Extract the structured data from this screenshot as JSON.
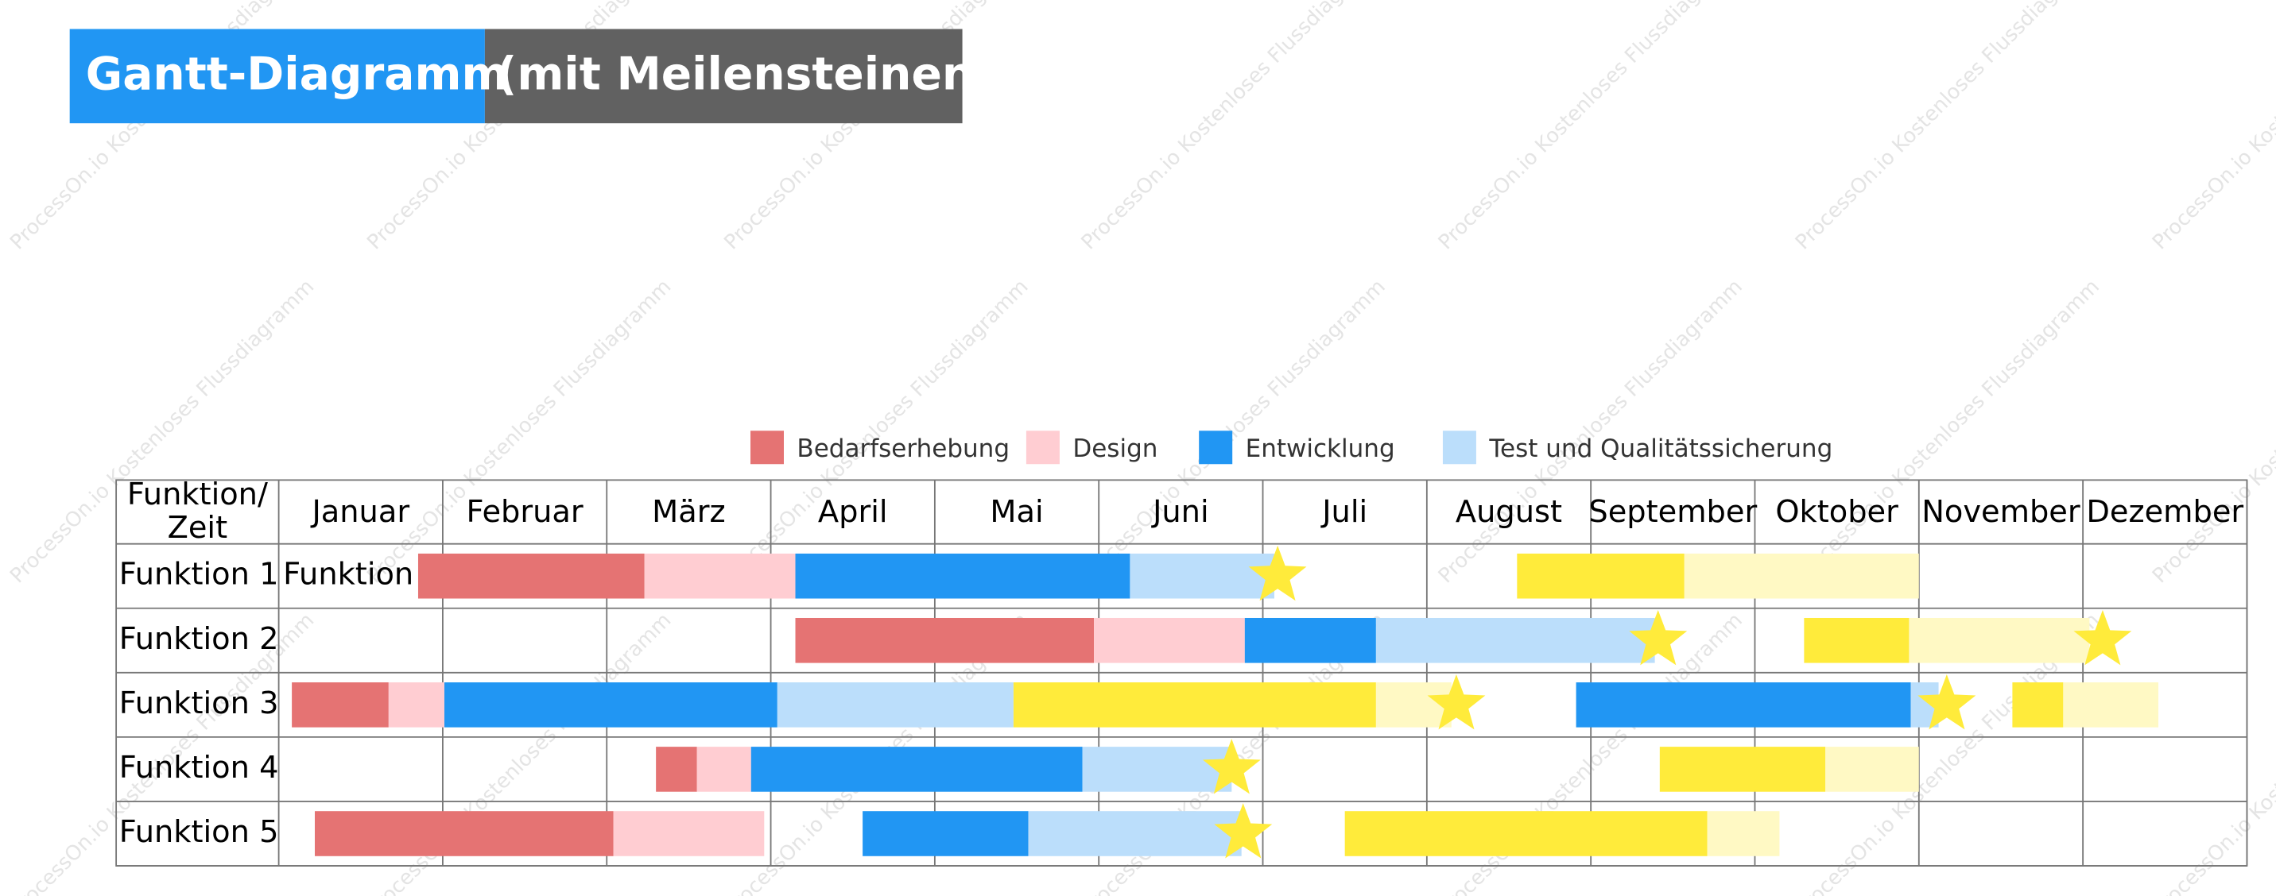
{
  "title": {
    "main": "Gantt-Diagramm",
    "sub": "(mit Meilensteinen)"
  },
  "watermark": "ProcessOn.io Kostenloses Flussdiagramm",
  "legend": [
    {
      "label": "Bedarfserhebung",
      "color": "#e57373"
    },
    {
      "label": "Design",
      "color": "#ffcdd2"
    },
    {
      "label": "Entwicklung",
      "color": "#2196f3"
    },
    {
      "label": "Test und Qualitätssicherung",
      "color": "#bbdefb"
    }
  ],
  "milestone_color": "#ffeb3b",
  "table": {
    "corner": [
      "Funktion/",
      "Zeit"
    ],
    "months": [
      "Januar",
      "Februar",
      "März",
      "April",
      "Mai",
      "Juni",
      "Juli",
      "August",
      "September",
      "Oktober",
      "November",
      "Dezember"
    ],
    "rows": [
      {
        "label": "Funktion 1",
        "note": "Funktion",
        "bars": [
          {
            "start": 0.85,
            "end": 2.23,
            "color": "#e57373"
          },
          {
            "start": 2.23,
            "end": 3.15,
            "color": "#ffcdd2"
          },
          {
            "start": 3.15,
            "end": 5.19,
            "color": "#2196f3"
          },
          {
            "start": 5.19,
            "end": 6.07,
            "color": "#bbdefb"
          },
          {
            "start": 7.55,
            "end": 8.57,
            "color": "#ffeb3b"
          },
          {
            "start": 8.57,
            "end": 10.0,
            "color": "#fff9c4"
          }
        ],
        "milestones": [
          6.09
        ]
      },
      {
        "label": "Funktion 2",
        "bars": [
          {
            "start": 3.15,
            "end": 4.97,
            "color": "#e57373"
          },
          {
            "start": 4.97,
            "end": 5.89,
            "color": "#ffcdd2"
          },
          {
            "start": 5.89,
            "end": 6.69,
            "color": "#2196f3"
          },
          {
            "start": 6.69,
            "end": 8.39,
            "color": "#bbdefb"
          },
          {
            "start": 9.3,
            "end": 9.94,
            "color": "#ffeb3b"
          },
          {
            "start": 9.94,
            "end": 11.04,
            "color": "#fff9c4"
          }
        ],
        "milestones": [
          8.41,
          11.12
        ]
      },
      {
        "label": "Funktion 3",
        "bars": [
          {
            "start": 0.08,
            "end": 0.67,
            "color": "#e57373"
          },
          {
            "start": 0.67,
            "end": 1.01,
            "color": "#ffcdd2"
          },
          {
            "start": 1.01,
            "end": 3.04,
            "color": "#2196f3"
          },
          {
            "start": 3.04,
            "end": 4.48,
            "color": "#bbdefb"
          },
          {
            "start": 4.48,
            "end": 6.69,
            "color": "#ffeb3b"
          },
          {
            "start": 6.69,
            "end": 7.15,
            "color": "#fff9c4"
          },
          {
            "start": 7.91,
            "end": 9.95,
            "color": "#2196f3"
          },
          {
            "start": 9.95,
            "end": 10.12,
            "color": "#bbdefb"
          },
          {
            "start": 10.57,
            "end": 10.88,
            "color": "#ffeb3b"
          },
          {
            "start": 10.88,
            "end": 11.46,
            "color": "#fff9c4"
          }
        ],
        "milestones": [
          7.18,
          10.17
        ]
      },
      {
        "label": "Funktion 4",
        "bars": [
          {
            "start": 2.3,
            "end": 2.55,
            "color": "#e57373"
          },
          {
            "start": 2.55,
            "end": 2.88,
            "color": "#ffcdd2"
          },
          {
            "start": 2.88,
            "end": 4.9,
            "color": "#2196f3"
          },
          {
            "start": 4.9,
            "end": 5.81,
            "color": "#bbdefb"
          },
          {
            "start": 8.42,
            "end": 9.43,
            "color": "#ffeb3b"
          },
          {
            "start": 9.43,
            "end": 10.0,
            "color": "#fff9c4"
          }
        ],
        "milestones": [
          5.81
        ]
      },
      {
        "label": "Funktion 5",
        "bars": [
          {
            "start": 0.22,
            "end": 2.04,
            "color": "#e57373"
          },
          {
            "start": 2.04,
            "end": 2.96,
            "color": "#ffcdd2"
          },
          {
            "start": 3.56,
            "end": 4.57,
            "color": "#2196f3"
          },
          {
            "start": 4.57,
            "end": 5.87,
            "color": "#bbdefb"
          },
          {
            "start": 6.5,
            "end": 8.71,
            "color": "#ffeb3b"
          },
          {
            "start": 8.71,
            "end": 9.15,
            "color": "#fff9c4"
          }
        ],
        "milestones": [
          5.88
        ]
      }
    ]
  }
}
